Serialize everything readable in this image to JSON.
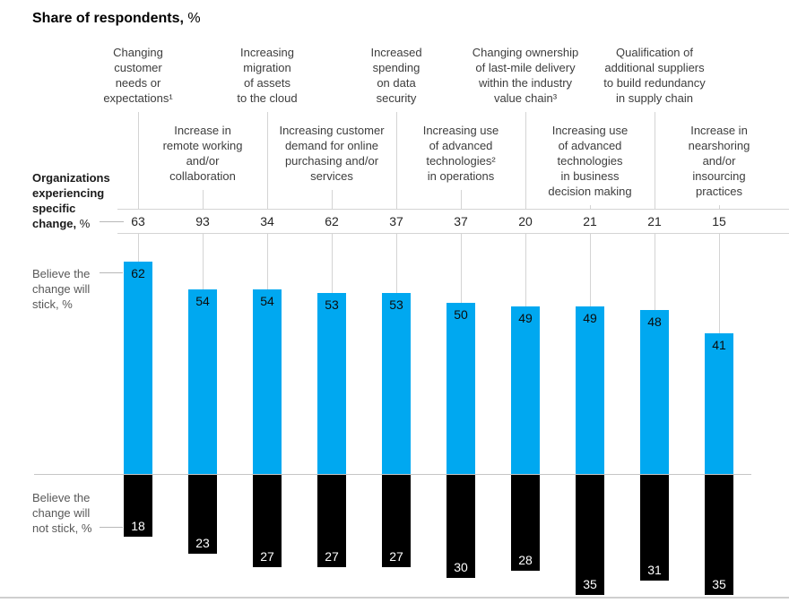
{
  "title": {
    "bold": "Share of respondents,",
    "pct": " %"
  },
  "row_labels": {
    "experiencing_bold": "Organizations\nexperiencing\nspecific\nchange,",
    "experiencing_pct": " %",
    "stick": "Believe the\nchange will\nstick, %",
    "not_stick": "Believe the\nchange will\nnot stick, %"
  },
  "colors": {
    "stick_blue": "#00a8f0",
    "not_stick_black": "#000000",
    "grid_line": "#d4d4d4",
    "baseline": "#c6c6c6",
    "label_gray": "#595959",
    "category_text": "#3d3d3d"
  },
  "chart_data": {
    "type": "bar",
    "title": "Share of respondents, %",
    "unit": "%",
    "layout": {
      "diverging": true,
      "grid": false,
      "legend_position": "left-annotations"
    },
    "categories": [
      {
        "label": "Changing\ncustomer\nneeds or\nexpectations¹",
        "row": 1
      },
      {
        "label": "Increase in\nremote working\nand/or\ncollaboration",
        "row": 2
      },
      {
        "label": "Increasing\nmigration\nof assets\nto the cloud",
        "row": 1
      },
      {
        "label": "Increasing customer\ndemand for online\npurchasing and/or\nservices",
        "row": 2
      },
      {
        "label": "Increased\nspending\non data\nsecurity",
        "row": 1
      },
      {
        "label": "Increasing use\nof advanced\ntechnologies²\nin operations",
        "row": 2
      },
      {
        "label": "Changing ownership\nof last-mile delivery\nwithin the industry\nvalue chain³",
        "row": 1
      },
      {
        "label": "Increasing use\nof advanced\ntechnologies\nin business\ndecision making",
        "row": 2
      },
      {
        "label": "Qualification of\nadditional suppliers\nto build redundancy\nin supply chain",
        "row": 1
      },
      {
        "label": "Increase in\nnearshoring\nand/or\ninsourcing\npractices",
        "row": 2
      }
    ],
    "series": [
      {
        "name": "Organizations experiencing specific change, %",
        "values": [
          63,
          93,
          34,
          62,
          37,
          37,
          20,
          21,
          21,
          15
        ]
      },
      {
        "name": "Believe the change will stick, %",
        "values": [
          62,
          54,
          54,
          53,
          53,
          50,
          49,
          49,
          48,
          41
        ]
      },
      {
        "name": "Believe the change will not stick, %",
        "values": [
          18,
          23,
          27,
          27,
          27,
          30,
          28,
          35,
          31,
          35
        ]
      }
    ]
  }
}
